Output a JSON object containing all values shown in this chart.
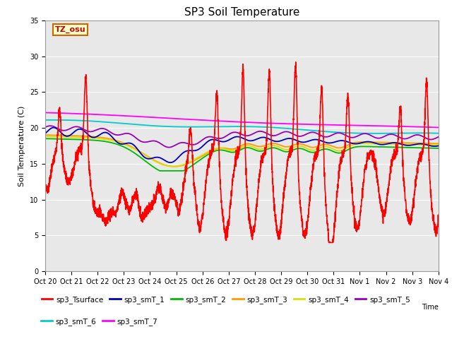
{
  "title": "SP3 Soil Temperature",
  "ylabel": "Soil Temperature (C)",
  "xlabel": "Time",
  "annotation": "TZ_osu",
  "ylim": [
    0,
    35
  ],
  "background_color": "#e8e8e8",
  "figure_color": "#ffffff",
  "tick_labels": [
    "Oct 20",
    "Oct 21",
    "Oct 22",
    "Oct 23",
    "Oct 24",
    "Oct 25",
    "Oct 26",
    "Oct 27",
    "Oct 28",
    "Oct 29",
    "Oct 30",
    "Oct 31",
    "Nov 1",
    "Nov 2",
    "Nov 3",
    "Nov 4"
  ],
  "legend_entries": [
    {
      "label": "sp3_Tsurface",
      "color": "#ff0000"
    },
    {
      "label": "sp3_smT_1",
      "color": "#0000bb"
    },
    {
      "label": "sp3_smT_2",
      "color": "#00bb00"
    },
    {
      "label": "sp3_smT_3",
      "color": "#ff9900"
    },
    {
      "label": "sp3_smT_4",
      "color": "#dddd00"
    },
    {
      "label": "sp3_smT_5",
      "color": "#9900bb"
    },
    {
      "label": "sp3_smT_6",
      "color": "#00cccc"
    },
    {
      "label": "sp3_smT_7",
      "color": "#ff00ff"
    }
  ],
  "n_points": 3000
}
